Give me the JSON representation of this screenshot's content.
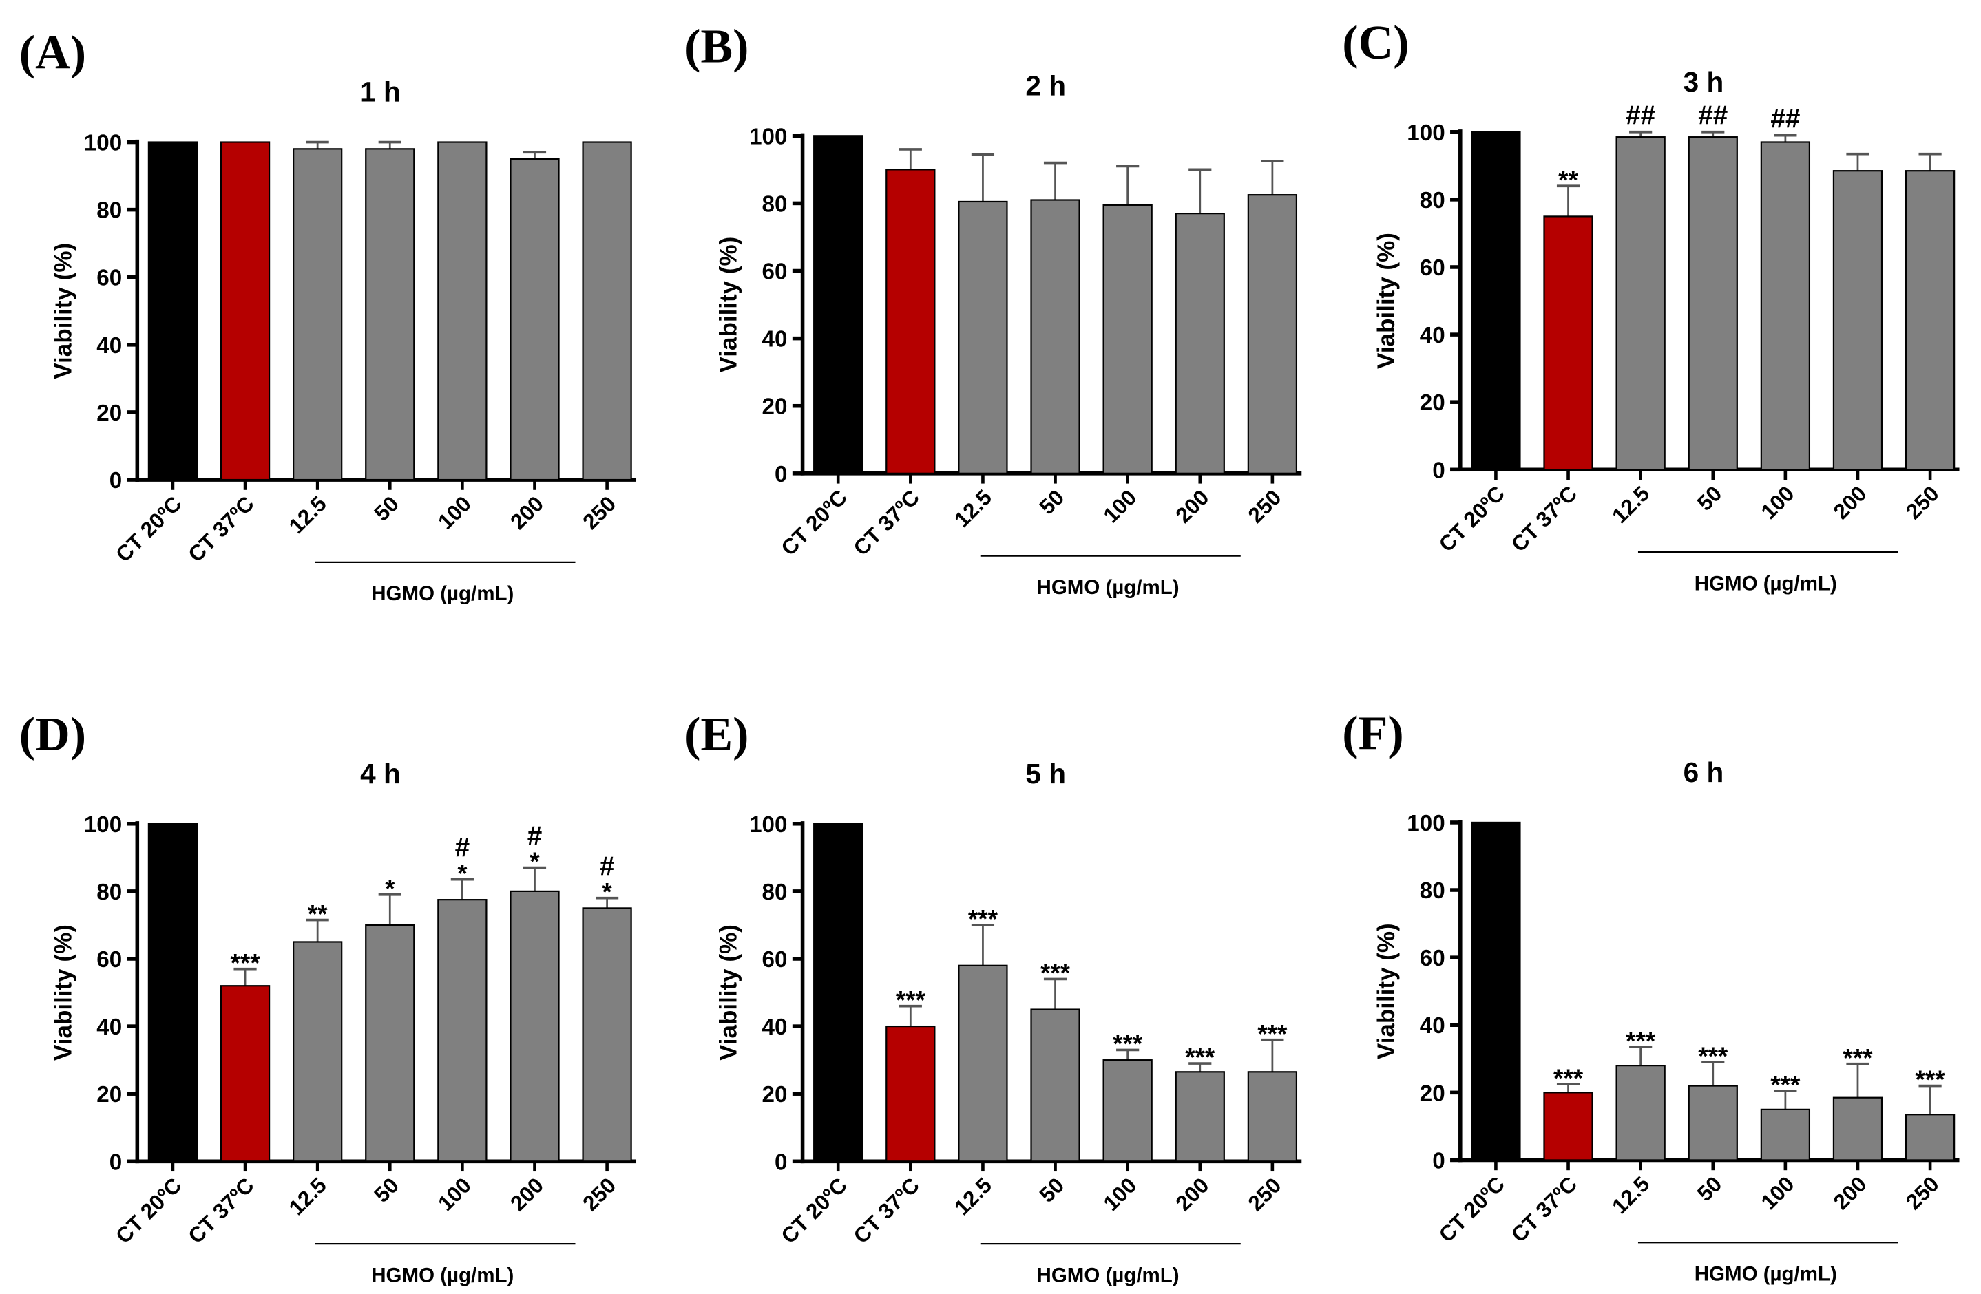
{
  "colors": {
    "control_20": "#000000",
    "control_37": "#b50000",
    "treatment": "#808080",
    "axis": "#000000"
  },
  "chart_data": [
    {
      "type": "bar",
      "panel": "(A)",
      "title": "1 h",
      "ylabel": "Viability (%)",
      "ylim": [
        0,
        100
      ],
      "yticks": [
        0,
        20,
        40,
        60,
        80,
        100
      ],
      "categories": [
        "CT 20ºC",
        "CT 37ºC",
        "12.5",
        "50",
        "100",
        "200",
        "250"
      ],
      "group_label": "HGMO (µg/mL)",
      "values": [
        100,
        100,
        98,
        98,
        100,
        95,
        100
      ],
      "errors": [
        0,
        0,
        2,
        2,
        0,
        2,
        0
      ],
      "annotations": [
        [],
        [],
        [],
        [],
        [],
        [],
        []
      ]
    },
    {
      "type": "bar",
      "panel": "(B)",
      "title": "2 h",
      "ylabel": "Viability (%)",
      "ylim": [
        0,
        100
      ],
      "yticks": [
        0,
        20,
        40,
        60,
        80,
        100
      ],
      "categories": [
        "CT 20ºC",
        "CT 37ºC",
        "12.5",
        "50",
        "100",
        "200",
        "250"
      ],
      "group_label": "HGMO (µg/mL)",
      "values": [
        100,
        90,
        80.5,
        81,
        79.5,
        77,
        82.5
      ],
      "errors": [
        0,
        6,
        14,
        11,
        11.5,
        13,
        10
      ],
      "annotations": [
        [],
        [],
        [],
        [],
        [],
        [],
        []
      ]
    },
    {
      "type": "bar",
      "panel": "(C)",
      "title": "3 h",
      "ylabel": "Viability (%)",
      "ylim": [
        0,
        100
      ],
      "yticks": [
        0,
        20,
        40,
        60,
        80,
        100
      ],
      "categories": [
        "CT 20ºC",
        "CT 37ºC",
        "12.5",
        "50",
        "100",
        "200",
        "250"
      ],
      "group_label": "HGMO (µg/mL)",
      "values": [
        100,
        75,
        98.5,
        98.5,
        97,
        88.5,
        88.5
      ],
      "errors": [
        0,
        9,
        1.5,
        1.5,
        2,
        5,
        5
      ],
      "annotations": [
        [],
        [
          "**"
        ],
        [
          "##"
        ],
        [
          "##"
        ],
        [
          "##"
        ],
        [],
        []
      ]
    },
    {
      "type": "bar",
      "panel": "(D)",
      "title": "4 h",
      "ylabel": "Viability (%)",
      "ylim": [
        0,
        100
      ],
      "yticks": [
        0,
        20,
        40,
        60,
        80,
        100
      ],
      "categories": [
        "CT 20ºC",
        "CT 37ºC",
        "12.5",
        "50",
        "100",
        "200",
        "250"
      ],
      "group_label": "HGMO (µg/mL)",
      "values": [
        100,
        52,
        65,
        70,
        77.5,
        80,
        75
      ],
      "errors": [
        0,
        5,
        6.5,
        9,
        6,
        7,
        3
      ],
      "annotations": [
        [],
        [
          "***"
        ],
        [
          "**"
        ],
        [
          "*"
        ],
        [
          "#",
          "*"
        ],
        [
          "#",
          "*"
        ],
        [
          "#",
          "*"
        ]
      ]
    },
    {
      "type": "bar",
      "panel": "(E)",
      "title": "5 h",
      "ylabel": "Viability (%)",
      "ylim": [
        0,
        100
      ],
      "yticks": [
        0,
        20,
        40,
        60,
        80,
        100
      ],
      "categories": [
        "CT 20ºC",
        "CT 37ºC",
        "12.5",
        "50",
        "100",
        "200",
        "250"
      ],
      "group_label": "HGMO (µg/mL)",
      "values": [
        100,
        40,
        58,
        45,
        30,
        26.5,
        26.5
      ],
      "errors": [
        0,
        6,
        12,
        9,
        3,
        2.5,
        9.5
      ],
      "annotations": [
        [],
        [
          "***"
        ],
        [
          "***"
        ],
        [
          "***"
        ],
        [
          "***"
        ],
        [
          "***"
        ],
        [
          "***"
        ]
      ]
    },
    {
      "type": "bar",
      "panel": "(F)",
      "title": "6 h",
      "ylabel": "Viability (%)",
      "ylim": [
        0,
        100
      ],
      "yticks": [
        0,
        20,
        40,
        60,
        80,
        100
      ],
      "categories": [
        "CT 20ºC",
        "CT 37ºC",
        "12.5",
        "50",
        "100",
        "200",
        "250"
      ],
      "group_label": "HGMO (µg/mL)",
      "values": [
        100,
        20,
        28,
        22,
        15,
        18.5,
        13.5
      ],
      "errors": [
        0,
        2.5,
        5.5,
        7,
        5.5,
        10,
        8.5
      ],
      "annotations": [
        [],
        [
          "***"
        ],
        [
          "***"
        ],
        [
          "***"
        ],
        [
          "***"
        ],
        [
          "***"
        ],
        [
          "***"
        ]
      ]
    }
  ]
}
